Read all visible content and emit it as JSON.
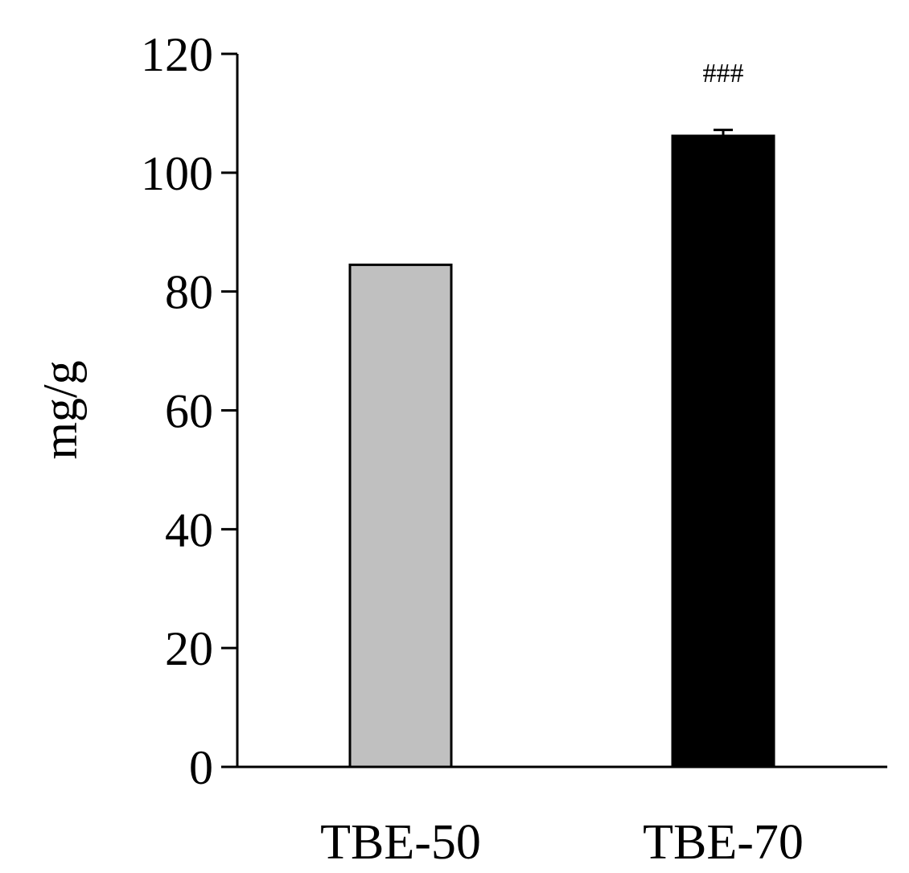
{
  "chart_data": {
    "type": "bar",
    "categories": [
      "TBE-50",
      "TBE-70"
    ],
    "values": [
      84.5,
      106.2
    ],
    "errors": [
      0,
      1.0
    ],
    "annotations": [
      "",
      "###"
    ],
    "colors": [
      "#c0c0c0",
      "#000000"
    ],
    "xlabel": "",
    "ylabel": "mg/g",
    "ylim": [
      0,
      120
    ],
    "yticks": [
      0,
      20,
      40,
      60,
      80,
      100,
      120
    ],
    "grid": false
  }
}
